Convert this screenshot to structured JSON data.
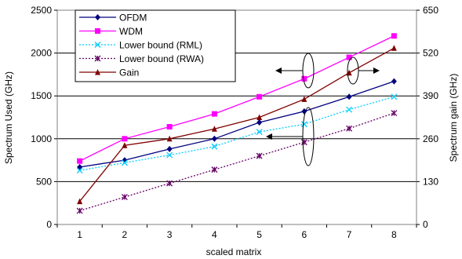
{
  "chart_data": {
    "type": "line",
    "x": [
      1,
      2,
      3,
      4,
      5,
      6,
      7,
      8
    ],
    "xlabel": "scaled matrix",
    "ylabel_left": "Spectrum Used (GHz)",
    "ylabel_right": "Spectrum gain (GHz)",
    "ylim_left": [
      0,
      2500
    ],
    "ylim_right": [
      0,
      650
    ],
    "yticks_left": [
      0,
      500,
      1000,
      1500,
      2000,
      2500
    ],
    "yticks_right": [
      0,
      130,
      260,
      390,
      520,
      650
    ],
    "grid": "horizontal",
    "legend_position": "top-left",
    "series": [
      {
        "name": "OFDM",
        "axis": "left",
        "color": "#00007f",
        "dash": "solid",
        "marker": "diamond",
        "values": [
          670,
          750,
          880,
          1000,
          1190,
          1320,
          1490,
          1670
        ]
      },
      {
        "name": "WDM",
        "axis": "left",
        "color": "#ff00ff",
        "dash": "solid",
        "marker": "square",
        "values": [
          740,
          1000,
          1140,
          1290,
          1490,
          1700,
          1950,
          2200
        ]
      },
      {
        "name": "Lower bound (RML)",
        "axis": "left",
        "color": "#00ccff",
        "dash": "dotted",
        "marker": "x",
        "values": [
          630,
          720,
          810,
          910,
          1080,
          1170,
          1340,
          1490
        ]
      },
      {
        "name": "Lower bound (RWA)",
        "axis": "left",
        "color": "#660066",
        "dash": "dotted",
        "marker": "star",
        "values": [
          160,
          320,
          480,
          640,
          800,
          960,
          1120,
          1300
        ]
      },
      {
        "name": "Gain",
        "axis": "right",
        "color": "#7f0000",
        "dash": "solid",
        "marker": "triangle",
        "values": [
          70,
          240,
          260,
          290,
          325,
          380,
          460,
          535
        ]
      }
    ]
  }
}
